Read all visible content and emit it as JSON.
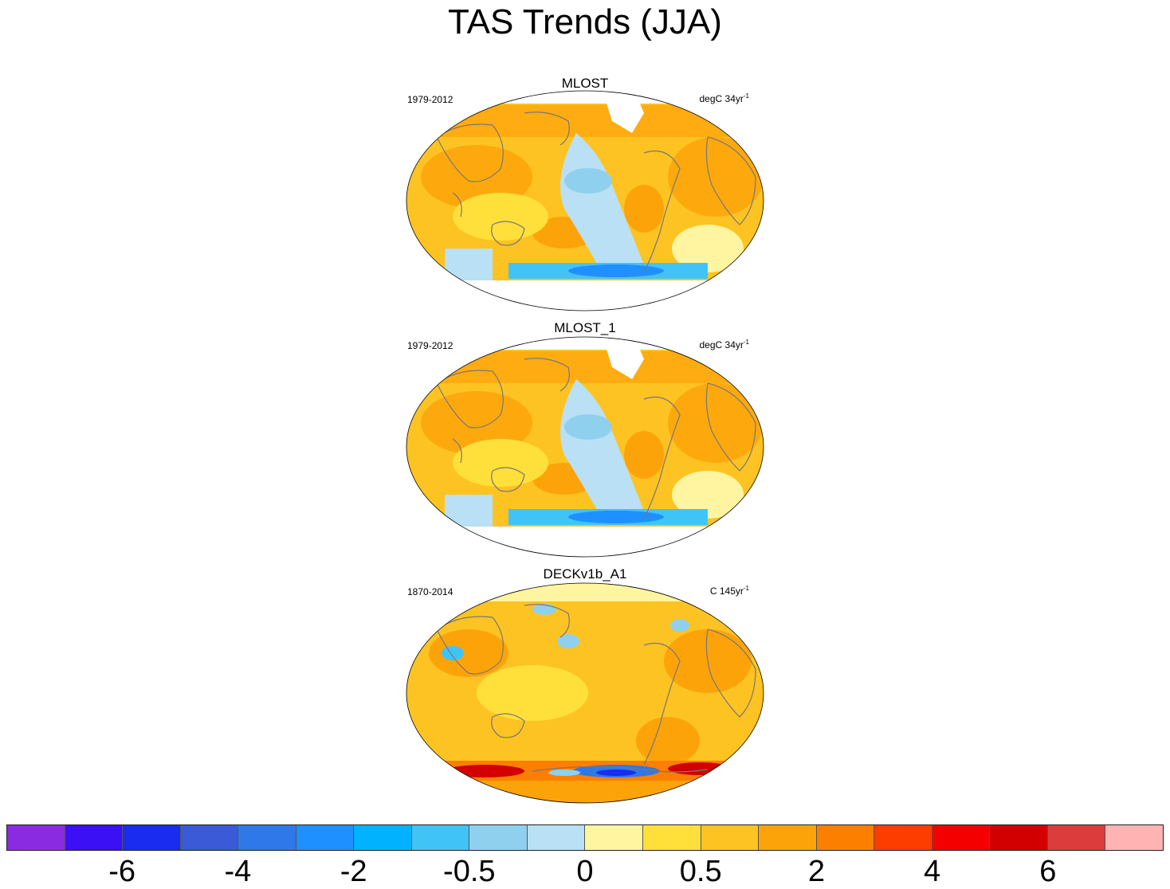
{
  "title": "TAS Trends (JJA)",
  "panels": [
    {
      "name": "MLOST",
      "period": "1979-2012",
      "units_prefix": "degC 34yr",
      "units_exp": "-1"
    },
    {
      "name": "MLOST_1",
      "period": "1979-2012",
      "units_prefix": "degC 34yr",
      "units_exp": "-1"
    },
    {
      "name": "DECKv1b_A1",
      "period": "1870-2014",
      "units_prefix": "C 145yr",
      "units_exp": "-1"
    }
  ],
  "colorbar": {
    "colors": [
      "#8a2be2",
      "#3b10f5",
      "#1a2cf0",
      "#3a5ad8",
      "#2e78ea",
      "#1e90ff",
      "#00b2ff",
      "#40c4f8",
      "#8fd0ee",
      "#b9e0f4",
      "#fff5a0",
      "#ffe03a",
      "#fdc322",
      "#fda30a",
      "#fd7f00",
      "#fd3c00",
      "#f50000",
      "#d20000",
      "#dc3c3c",
      "#ffb4b4"
    ],
    "tick_labels": [
      "-6",
      "-4",
      "-2",
      "-0.5",
      "0",
      "0.5",
      "2",
      "4",
      "6"
    ]
  },
  "legend_colors": {
    "land_outline": "#777777",
    "missing": "#ffffff"
  }
}
